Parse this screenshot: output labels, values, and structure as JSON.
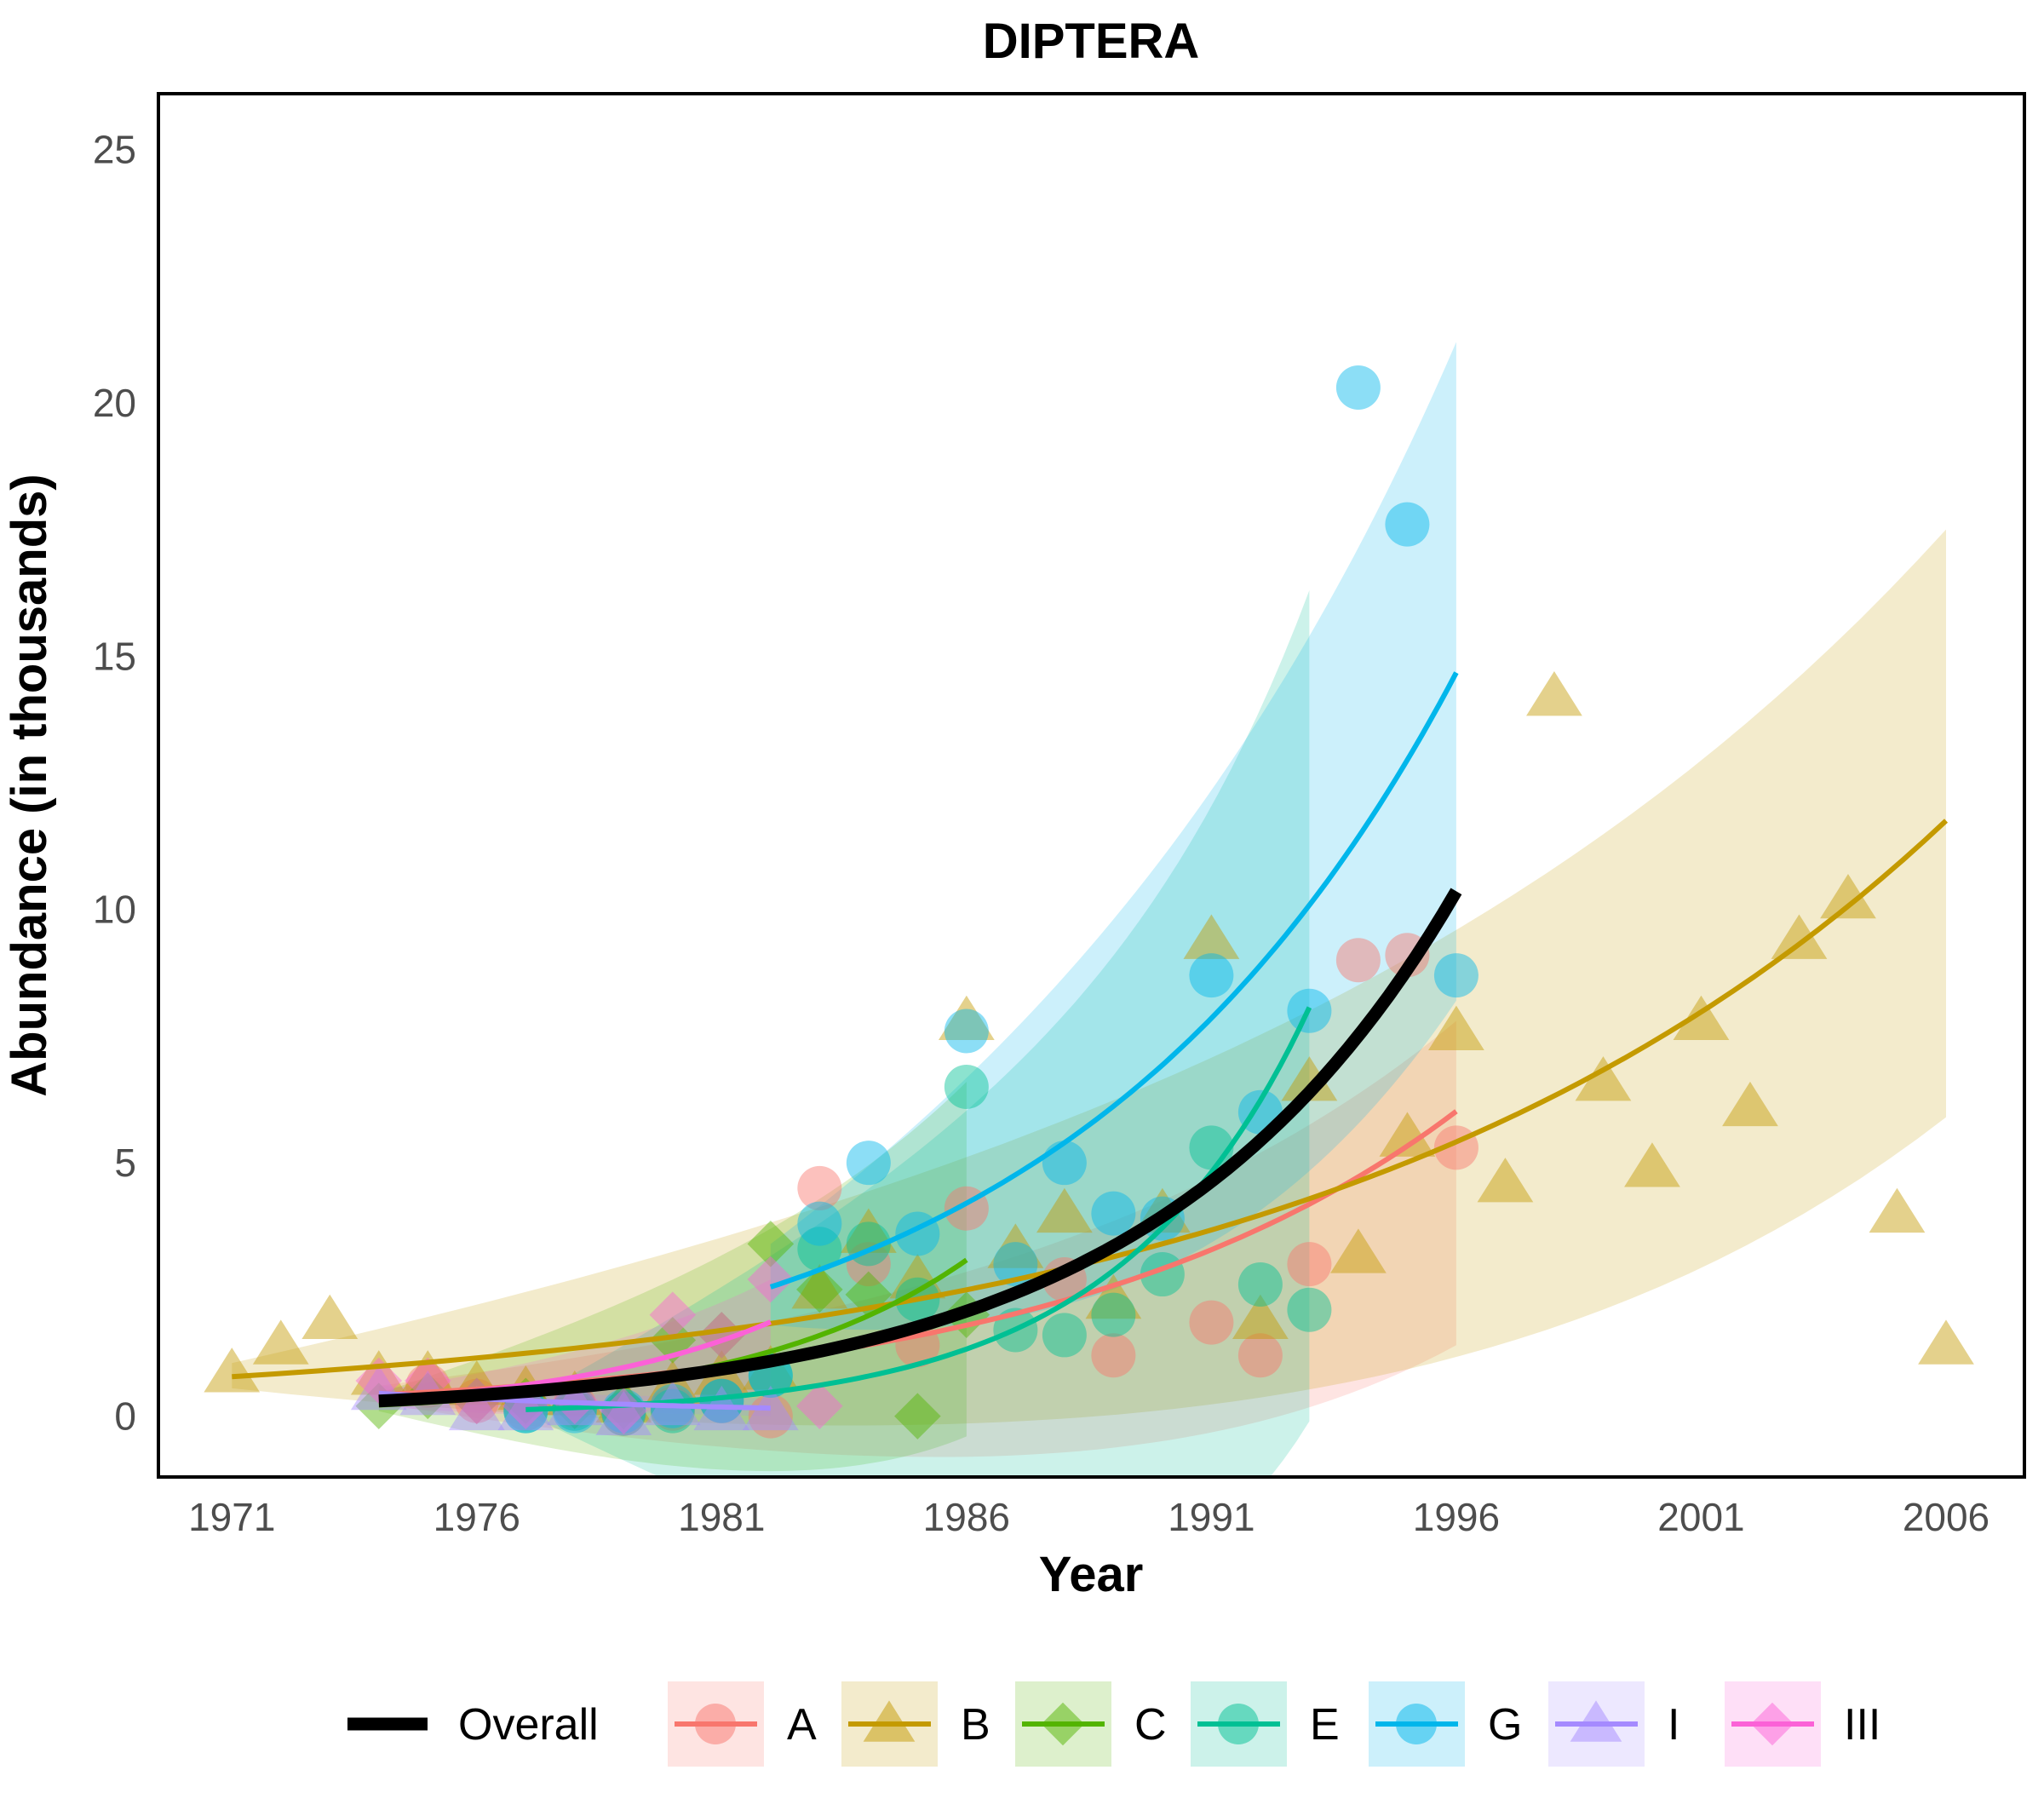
{
  "chart_data": {
    "type": "scatter",
    "title": "DIPTERA",
    "xlabel": "Year",
    "ylabel": "Abundance (in thousands)",
    "xlim": [
      1969.5,
      2007.6
    ],
    "ylim": [
      -1.2,
      26.1
    ],
    "xticks": [
      1971,
      1976,
      1981,
      1986,
      1991,
      1996,
      2001,
      2006
    ],
    "yticks": [
      0,
      5,
      10,
      15,
      20,
      25
    ],
    "grid": false,
    "legend_position": "bottom",
    "overall": {
      "name": "Overall",
      "color": "#000000",
      "x_range": [
        1974,
        1996
      ],
      "a": 0.3,
      "b": 0.161
    },
    "series": [
      {
        "name": "A",
        "color": "#F8766D",
        "shape": "circle",
        "fit": {
          "x_range": [
            1974,
            1996
          ],
          "a": 0.42,
          "b": 0.121
        },
        "band": {
          "low": [
            0.25,
            1.4
          ],
          "high": [
            0.6,
            7.8
          ]
        },
        "points": [
          [
            1975,
            0.6
          ],
          [
            1976,
            0.3
          ],
          [
            1977,
            0.15
          ],
          [
            1978,
            0.2
          ],
          [
            1979,
            0.05
          ],
          [
            1980,
            0.15
          ],
          [
            1981,
            0.3
          ],
          [
            1982,
            0.0
          ],
          [
            1983,
            4.5
          ],
          [
            1984,
            3.0
          ],
          [
            1985,
            1.4
          ],
          [
            1986,
            4.1
          ],
          [
            1988,
            2.7
          ],
          [
            1989,
            1.2
          ],
          [
            1991,
            1.85
          ],
          [
            1992,
            1.2
          ],
          [
            1993,
            3.0
          ],
          [
            1994,
            9.0
          ],
          [
            1995,
            9.1
          ],
          [
            1996,
            5.3
          ]
        ]
      },
      {
        "name": "B",
        "color": "#C49A00",
        "shape": "triangle",
        "fit": {
          "x_range": [
            1971,
            2006
          ],
          "a": 0.78,
          "b": 0.0775
        },
        "band": {
          "low": [
            0.55,
            5.9
          ],
          "high": [
            1.05,
            17.5
          ]
        },
        "points": [
          [
            1971,
            0.85
          ],
          [
            1972,
            1.4
          ],
          [
            1973,
            1.9
          ],
          [
            1974,
            0.8
          ],
          [
            1975,
            0.8
          ],
          [
            1976,
            0.6
          ],
          [
            1977,
            0.5
          ],
          [
            1978,
            0.4
          ],
          [
            1979,
            0.25
          ],
          [
            1980,
            0.6
          ],
          [
            1981,
            0.8
          ],
          [
            1982,
            0.9
          ],
          [
            1983,
            2.5
          ],
          [
            1984,
            3.6
          ],
          [
            1985,
            2.7
          ],
          [
            1986,
            7.8
          ],
          [
            1987,
            3.3
          ],
          [
            1988,
            4.0
          ],
          [
            1989,
            2.3
          ],
          [
            1990,
            4.0
          ],
          [
            1991,
            9.4
          ],
          [
            1992,
            1.9
          ],
          [
            1993,
            6.6
          ],
          [
            1994,
            3.2
          ],
          [
            1995,
            5.5
          ],
          [
            1996,
            7.6
          ],
          [
            1997,
            4.6
          ],
          [
            1998,
            14.2
          ],
          [
            1999,
            6.6
          ],
          [
            2000,
            4.9
          ],
          [
            2001,
            7.8
          ],
          [
            2002,
            6.1
          ],
          [
            2003,
            9.4
          ],
          [
            2004,
            10.2
          ],
          [
            2005,
            4.0
          ],
          [
            2006,
            1.4
          ]
        ]
      },
      {
        "name": "C",
        "color": "#53B400",
        "shape": "diamond",
        "fit": {
          "x_range": [
            1974,
            1986
          ],
          "a": 0.22,
          "b": 0.22
        },
        "band": {
          "low": [
            0.1,
            -0.4
          ],
          "high": [
            0.45,
            6.6
          ]
        },
        "points": [
          [
            1974,
            0.2
          ],
          [
            1975,
            0.4
          ],
          [
            1976,
            0.3
          ],
          [
            1977,
            0.3
          ],
          [
            1978,
            0.2
          ],
          [
            1979,
            0.2
          ],
          [
            1980,
            1.5
          ],
          [
            1981,
            1.6
          ],
          [
            1982,
            3.4
          ],
          [
            1983,
            2.5
          ],
          [
            1984,
            2.4
          ],
          [
            1985,
            0.0
          ],
          [
            1986,
            2.0
          ]
        ]
      },
      {
        "name": "E",
        "color": "#00C094",
        "shape": "circle",
        "fit": {
          "x_range": [
            1977,
            1993
          ],
          "a": 0.13,
          "b": 0.258
        },
        "band": {
          "low": [
            0.05,
            -0.1
          ],
          "high": [
            0.3,
            16.3
          ]
        },
        "points": [
          [
            1977,
            0.1
          ],
          [
            1978,
            0.15
          ],
          [
            1979,
            0.05
          ],
          [
            1980,
            0.1
          ],
          [
            1981,
            0.3
          ],
          [
            1982,
            0.8
          ],
          [
            1983,
            3.3
          ],
          [
            1984,
            3.4
          ],
          [
            1985,
            2.3
          ],
          [
            1986,
            6.5
          ],
          [
            1987,
            1.7
          ],
          [
            1988,
            1.6
          ],
          [
            1989,
            2.0
          ],
          [
            1990,
            2.8
          ],
          [
            1991,
            5.3
          ],
          [
            1992,
            2.6
          ],
          [
            1993,
            2.1
          ]
        ]
      },
      {
        "name": "G",
        "color": "#00B6EB",
        "shape": "circle",
        "fit": {
          "x_range": [
            1982,
            1996
          ],
          "a": 2.55,
          "b": 0.125
        },
        "band": {
          "low": [
            1.8,
            8.2
          ],
          "high": [
            3.4,
            21.2
          ]
        },
        "points": [
          [
            1977,
            0.1
          ],
          [
            1978,
            0.1
          ],
          [
            1979,
            0.1
          ],
          [
            1980,
            0.2
          ],
          [
            1981,
            0.3
          ],
          [
            1982,
            0.8
          ],
          [
            1983,
            3.8
          ],
          [
            1984,
            5.0
          ],
          [
            1985,
            3.6
          ],
          [
            1986,
            7.6
          ],
          [
            1987,
            3.0
          ],
          [
            1988,
            5.0
          ],
          [
            1989,
            4.0
          ],
          [
            1990,
            3.9
          ],
          [
            1991,
            8.7
          ],
          [
            1992,
            6.0
          ],
          [
            1993,
            8.0
          ],
          [
            1994,
            20.3
          ],
          [
            1995,
            17.6
          ],
          [
            1996,
            8.7
          ]
        ]
      },
      {
        "name": "I",
        "color": "#A58AFF",
        "shape": "triangle",
        "fit": {
          "x_range": [
            1974,
            1982
          ],
          "a": 0.45,
          "b": -0.13
        },
        "band": {
          "low": [
            0.3,
            0.0
          ],
          "high": [
            0.6,
            0.35
          ]
        },
        "points": [
          [
            1974,
            0.5
          ],
          [
            1975,
            0.4
          ],
          [
            1976,
            0.1
          ],
          [
            1977,
            0.1
          ],
          [
            1978,
            0.2
          ],
          [
            1979,
            0.0
          ],
          [
            1980,
            0.2
          ],
          [
            1981,
            0.1
          ],
          [
            1982,
            0.1
          ]
        ]
      },
      {
        "name": "III",
        "color": "#FB61D7",
        "shape": "diamond",
        "fit": {
          "x_range": [
            1974,
            1982
          ],
          "a": 0.32,
          "b": 0.22
        },
        "band": {
          "low": [
            0.2,
            0.5
          ],
          "high": [
            0.5,
            2.7
          ]
        },
        "points": [
          [
            1974,
            0.7
          ],
          [
            1975,
            0.7
          ],
          [
            1976,
            0.3
          ],
          [
            1977,
            0.2
          ],
          [
            1978,
            0.3
          ],
          [
            1979,
            0.1
          ],
          [
            1980,
            2.0
          ],
          [
            1981,
            1.6
          ],
          [
            1982,
            2.7
          ],
          [
            1983,
            0.2
          ]
        ]
      }
    ]
  }
}
